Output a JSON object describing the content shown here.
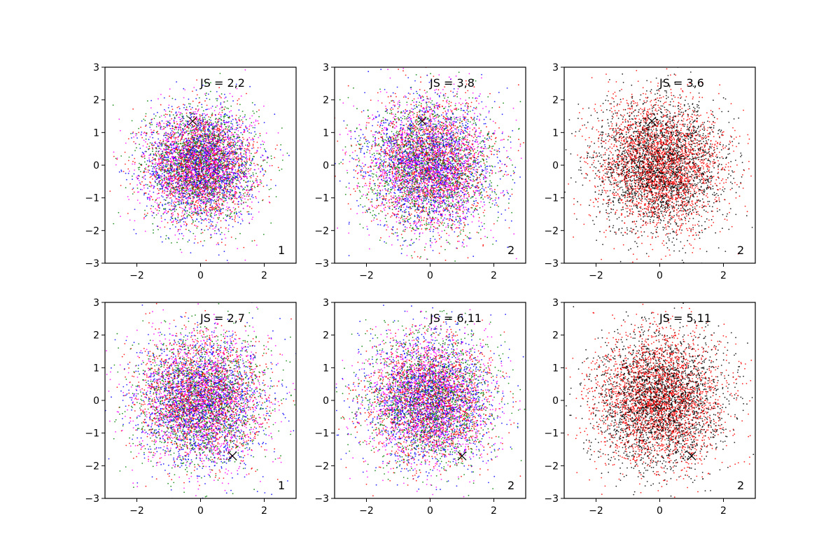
{
  "chart_data": [
    {
      "type": "scatter",
      "annotation": "JS = 2,2",
      "corner_label": "1",
      "xlim": [
        -3,
        3
      ],
      "ylim": [
        -3,
        3
      ],
      "xticks": [
        -2,
        0,
        2
      ],
      "yticks": [
        -3,
        -2,
        -1,
        0,
        1,
        2,
        3
      ],
      "series_colors": [
        "#0000ff",
        "#ff00ff",
        "#ff0000",
        "#008000"
      ],
      "points_per_series": 1500,
      "spread": {
        "sx": 0.85,
        "sy": 0.85
      },
      "marker": {
        "symbol": "x",
        "x": -0.25,
        "y": 1.35
      },
      "grid": false
    },
    {
      "type": "scatter",
      "annotation": "JS = 3,8",
      "corner_label": "2",
      "xlim": [
        -3,
        3
      ],
      "ylim": [
        -3,
        3
      ],
      "xticks": [
        -2,
        0,
        2
      ],
      "yticks": [
        -3,
        -2,
        -1,
        0,
        1,
        2,
        3
      ],
      "series_colors": [
        "#0000ff",
        "#ff00ff",
        "#ff0000",
        "#008000"
      ],
      "points_per_series": 1500,
      "spread": {
        "sx": 1.0,
        "sy": 1.0
      },
      "marker": {
        "symbol": "x",
        "x": -0.25,
        "y": 1.35
      },
      "grid": false
    },
    {
      "type": "scatter",
      "annotation": "JS = 3,6",
      "corner_label": "2",
      "xlim": [
        -3,
        3
      ],
      "ylim": [
        -3,
        3
      ],
      "xticks": [
        -2,
        0,
        2
      ],
      "yticks": [
        -3,
        -2,
        -1,
        0,
        1,
        2,
        3
      ],
      "series_colors": [
        "#000000",
        "#ff0000"
      ],
      "points_per_series": 2500,
      "spread": {
        "sx": 1.0,
        "sy": 1.0
      },
      "marker": {
        "symbol": "x",
        "x": -0.25,
        "y": 1.35
      },
      "grid": false
    },
    {
      "type": "scatter",
      "annotation": "JS = 2,7",
      "corner_label": "1",
      "xlim": [
        -3,
        3
      ],
      "ylim": [
        -3,
        3
      ],
      "xticks": [
        -2,
        0,
        2
      ],
      "yticks": [
        -3,
        -2,
        -1,
        0,
        1,
        2,
        3
      ],
      "series_colors": [
        "#0000ff",
        "#ff00ff",
        "#ff0000",
        "#008000"
      ],
      "points_per_series": 1500,
      "spread": {
        "sx": 1.0,
        "sy": 1.0
      },
      "marker": {
        "symbol": "x",
        "x": 1.0,
        "y": -1.7
      },
      "grid": false
    },
    {
      "type": "scatter",
      "annotation": "JS = 6,11",
      "corner_label": "2",
      "xlim": [
        -3,
        3
      ],
      "ylim": [
        -3,
        3
      ],
      "xticks": [
        -2,
        0,
        2
      ],
      "yticks": [
        -3,
        -2,
        -1,
        0,
        1,
        2,
        3
      ],
      "series_colors": [
        "#0000ff",
        "#ff00ff",
        "#ff0000",
        "#008000"
      ],
      "points_per_series": 1500,
      "spread": {
        "sx": 1.0,
        "sy": 1.0
      },
      "marker": {
        "symbol": "x",
        "x": 1.0,
        "y": -1.7
      },
      "grid": false
    },
    {
      "type": "scatter",
      "annotation": "JS = 5,11",
      "corner_label": "2",
      "xlim": [
        -3,
        3
      ],
      "ylim": [
        -3,
        3
      ],
      "xticks": [
        -2,
        0,
        2
      ],
      "yticks": [
        -3,
        -2,
        -1,
        0,
        1,
        2,
        3
      ],
      "series_colors": [
        "#000000",
        "#ff0000"
      ],
      "points_per_series": 2500,
      "spread": {
        "sx": 1.0,
        "sy": 1.0
      },
      "marker": {
        "symbol": "x",
        "x": 1.0,
        "y": -1.7
      },
      "grid": false
    }
  ]
}
